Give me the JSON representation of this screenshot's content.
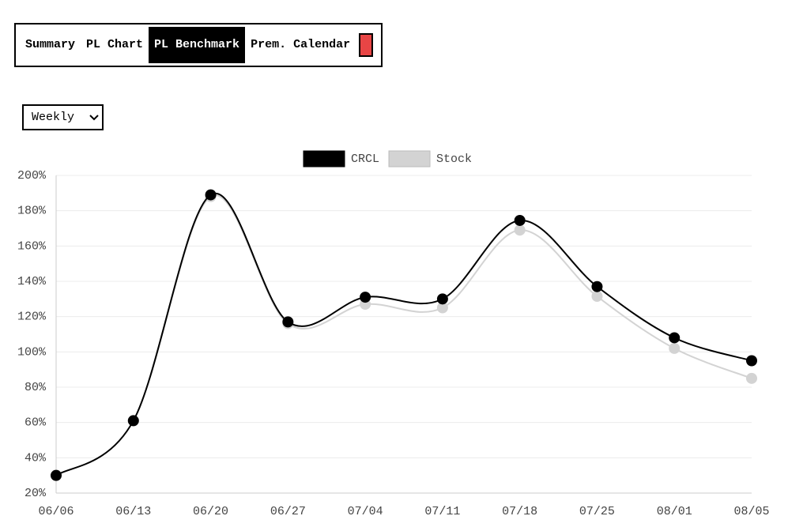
{
  "tabs": [
    "Summary",
    "PL Chart",
    "PL Benchmark",
    "Prem. Calendar"
  ],
  "active_tab": 2,
  "period_select": "Weekly",
  "chart_data": {
    "type": "line",
    "categories": [
      "06/06",
      "06/13",
      "06/20",
      "06/27",
      "07/04",
      "07/11",
      "07/18",
      "07/25",
      "08/01",
      "08/05"
    ],
    "series": [
      {
        "name": "CRCL",
        "color": "#000000",
        "values": [
          30,
          61,
          189,
          117,
          131,
          130,
          174.5,
          137,
          108,
          95
        ]
      },
      {
        "name": "Stock",
        "color": "#d3d3d3",
        "values": [
          30,
          61,
          188,
          116,
          127,
          125,
          169,
          131.5,
          102,
          85
        ]
      }
    ],
    "ylim": [
      20,
      200
    ],
    "yticks": [
      {
        "value": 20,
        "label": "20%"
      },
      {
        "value": 40,
        "label": "40%"
      },
      {
        "value": 60,
        "label": "60%"
      },
      {
        "value": 80,
        "label": "80%"
      },
      {
        "value": 100,
        "label": "100%"
      },
      {
        "value": 120,
        "label": "120%"
      },
      {
        "value": 140,
        "label": "140%"
      },
      {
        "value": 160,
        "label": "160%"
      },
      {
        "value": 180,
        "label": "180%"
      },
      {
        "value": 200,
        "label": "200%"
      }
    ],
    "grid": true
  }
}
